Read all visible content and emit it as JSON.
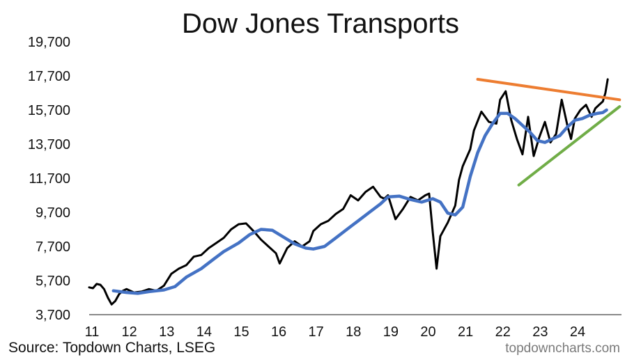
{
  "title": "Dow Jones Transports",
  "source": "Source: Topdown Charts, LSEG",
  "watermark": "topdowncharts.com",
  "colors": {
    "price": "#000000",
    "moving_average": "#4472C4",
    "resistance": "#ED7D31",
    "support": "#70AD47"
  },
  "chart_data": {
    "type": "line",
    "title": "Dow Jones Transports",
    "xlim": [
      2011,
      2025.25
    ],
    "ylim": [
      3700,
      19700
    ],
    "y_ticks": [
      "3,700",
      "5,700",
      "7,700",
      "9,700",
      "11,700",
      "13,700",
      "15,700",
      "17,700",
      "19,700"
    ],
    "x_ticks": [
      {
        "x": 2011,
        "label": "11"
      },
      {
        "x": 2012,
        "label": "12"
      },
      {
        "x": 2013,
        "label": "13"
      },
      {
        "x": 2014,
        "label": "14"
      },
      {
        "x": 2015,
        "label": "15"
      },
      {
        "x": 2016,
        "label": "16"
      },
      {
        "x": 2017,
        "label": "17"
      },
      {
        "x": 2018,
        "label": "18"
      },
      {
        "x": 2019,
        "label": "19"
      },
      {
        "x": 2020,
        "label": "20"
      },
      {
        "x": 2021,
        "label": "21"
      },
      {
        "x": 2022,
        "label": "22"
      },
      {
        "x": 2023,
        "label": "23"
      },
      {
        "x": 2024,
        "label": "24"
      }
    ],
    "grid": false,
    "series": [
      {
        "key": "price",
        "x": [
          2011.0,
          2011.1,
          2011.2,
          2011.3,
          2011.4,
          2011.5,
          2011.6,
          2011.7,
          2011.8,
          2011.9,
          2012.0,
          2012.2,
          2012.4,
          2012.6,
          2012.8,
          2013.0,
          2013.2,
          2013.4,
          2013.6,
          2013.8,
          2014.0,
          2014.2,
          2014.4,
          2014.6,
          2014.8,
          2015.0,
          2015.2,
          2015.4,
          2015.6,
          2015.8,
          2016.0,
          2016.1,
          2016.3,
          2016.5,
          2016.7,
          2016.9,
          2017.0,
          2017.2,
          2017.4,
          2017.6,
          2017.8,
          2018.0,
          2018.2,
          2018.4,
          2018.6,
          2018.8,
          2018.9,
          2019.0,
          2019.2,
          2019.4,
          2019.6,
          2019.8,
          2020.0,
          2020.1,
          2020.2,
          2020.3,
          2020.4,
          2020.6,
          2020.8,
          2020.9,
          2021.0,
          2021.2,
          2021.3,
          2021.5,
          2021.7,
          2021.9,
          2022.0,
          2022.15,
          2022.3,
          2022.45,
          2022.6,
          2022.75,
          2022.9,
          2023.05,
          2023.2,
          2023.35,
          2023.5,
          2023.65,
          2023.8,
          2023.9,
          2024.0,
          2024.15,
          2024.3,
          2024.45,
          2024.55,
          2024.65,
          2024.75,
          2024.82,
          2024.88
        ],
        "y": [
          5300,
          5250,
          5500,
          5450,
          5200,
          4700,
          4300,
          4500,
          4900,
          5100,
          5200,
          5000,
          5050,
          5200,
          5100,
          5400,
          6100,
          6400,
          6600,
          7100,
          7200,
          7600,
          7900,
          8200,
          8700,
          9000,
          9050,
          8600,
          8100,
          7700,
          7300,
          6700,
          7600,
          8000,
          7700,
          8000,
          8600,
          9000,
          9200,
          9600,
          9900,
          10700,
          10400,
          10900,
          11200,
          10600,
          10500,
          10700,
          9300,
          9900,
          10600,
          10400,
          10700,
          10800,
          8500,
          6400,
          8300,
          9100,
          10100,
          11600,
          12400,
          13400,
          14500,
          15600,
          15000,
          14900,
          16300,
          16800,
          15100,
          14000,
          13100,
          15300,
          13000,
          14100,
          15000,
          13800,
          14300,
          16300,
          14800,
          14000,
          15200,
          15700,
          16000,
          15300,
          15800,
          16000,
          16200,
          16700,
          17500
        ]
      },
      {
        "key": "moving_average",
        "x": [
          2011.65,
          2012.0,
          2012.3,
          2012.6,
          2013.0,
          2013.3,
          2013.6,
          2014.0,
          2014.3,
          2014.6,
          2015.0,
          2015.3,
          2015.6,
          2015.9,
          2016.2,
          2016.5,
          2016.8,
          2017.0,
          2017.3,
          2017.6,
          2017.9,
          2018.2,
          2018.5,
          2018.8,
          2019.0,
          2019.3,
          2019.6,
          2019.9,
          2020.2,
          2020.4,
          2020.6,
          2020.8,
          2021.0,
          2021.2,
          2021.4,
          2021.6,
          2021.8,
          2022.0,
          2022.2,
          2022.4,
          2022.6,
          2022.8,
          2023.0,
          2023.2,
          2023.4,
          2023.6,
          2023.8,
          2024.0,
          2024.2,
          2024.4,
          2024.6,
          2024.75,
          2024.85
        ],
        "y": [
          5100,
          5000,
          4950,
          5050,
          5150,
          5350,
          5900,
          6400,
          6900,
          7400,
          7900,
          8400,
          8700,
          8650,
          8250,
          7850,
          7600,
          7550,
          7700,
          8200,
          8700,
          9200,
          9700,
          10200,
          10600,
          10650,
          10450,
          10300,
          10500,
          10300,
          9650,
          9550,
          10000,
          11800,
          13200,
          14200,
          14900,
          15500,
          15500,
          15200,
          14800,
          14400,
          13900,
          13800,
          14000,
          14200,
          14700,
          15100,
          15200,
          15400,
          15500,
          15550,
          15700
        ]
      },
      {
        "key": "resistance",
        "x": [
          2021.4,
          2025.2
        ],
        "y": [
          17500,
          16300
        ]
      },
      {
        "key": "support",
        "x": [
          2022.5,
          2025.2
        ],
        "y": [
          11300,
          15900
        ]
      }
    ]
  }
}
